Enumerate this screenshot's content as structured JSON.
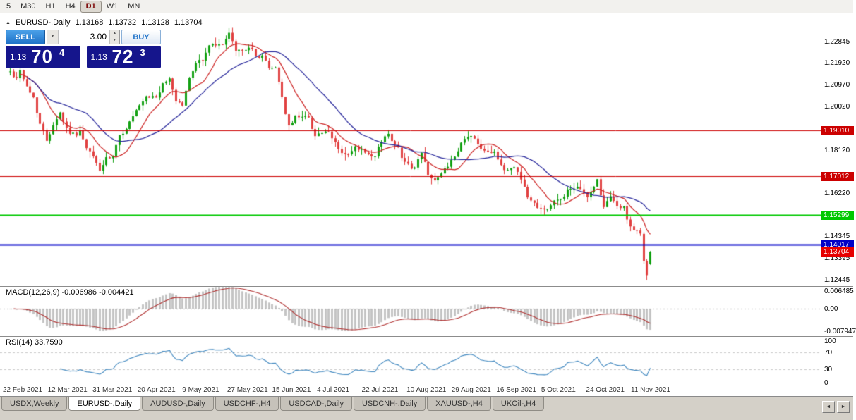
{
  "window": {
    "toolbar": {
      "timeframes": [
        {
          "label": "5",
          "active": false
        },
        {
          "label": "M30",
          "active": false
        },
        {
          "label": "H1",
          "active": false
        },
        {
          "label": "H4",
          "active": false
        },
        {
          "label": "D1",
          "active": true
        },
        {
          "label": "W1",
          "active": false
        },
        {
          "label": "MN",
          "active": false
        }
      ]
    },
    "tabs": [
      {
        "label": "USDX,Weekly",
        "active": false
      },
      {
        "label": "EURUSD-,Daily",
        "active": true
      },
      {
        "label": "AUDUSD-,Daily",
        "active": false
      },
      {
        "label": "USDCHF-,H4",
        "active": false
      },
      {
        "label": "USDCAD-,Daily",
        "active": false
      },
      {
        "label": "USDCNH-,Daily",
        "active": false
      },
      {
        "label": "XAUUSD-,H4",
        "active": false
      },
      {
        "label": "UKOil-,H4",
        "active": false
      }
    ]
  },
  "icons": {
    "collapse": "▲",
    "volume_dropdown": "▼",
    "spin_up": "▲",
    "spin_down": "▼",
    "tab_left": "◄",
    "tab_right": "►"
  },
  "header": {
    "symbol": "EURUSD-,Daily",
    "open": "1.13168",
    "high": "1.13732",
    "low": "1.13128",
    "close": "1.13704"
  },
  "trade_panel": {
    "sell_label": "SELL",
    "buy_label": "BUY",
    "volume": "3.00",
    "bid": {
      "prefix": "1.13",
      "big": "70",
      "sup": "4"
    },
    "ask": {
      "prefix": "1.13",
      "big": "72",
      "sup": "3"
    }
  },
  "price_axis": {
    "plain_labels": [
      {
        "text": "1.22845",
        "price": 1.22845
      },
      {
        "text": "1.21920",
        "price": 1.2192
      },
      {
        "text": "1.20970",
        "price": 1.2097
      },
      {
        "text": "1.20020",
        "price": 1.2002
      },
      {
        "text": "1.18120",
        "price": 1.1812
      },
      {
        "text": "1.16220",
        "price": 1.1622
      },
      {
        "text": "1.14345",
        "price": 1.14345
      },
      {
        "text": "1.13395",
        "price": 1.13395
      },
      {
        "text": "1.12445",
        "price": 1.12445
      }
    ],
    "level_labels": [
      {
        "text": "1.19010",
        "price": 1.1901,
        "color": "#cc0000"
      },
      {
        "text": "1.17012",
        "price": 1.17012,
        "color": "#cc0000"
      },
      {
        "text": "1.15299",
        "price": 1.15299,
        "color": "#00c800"
      },
      {
        "text": "1.14017",
        "price": 1.14017,
        "color": "#0000c8"
      }
    ],
    "current_label": {
      "text": "1.13704",
      "price": 1.13704,
      "color": "#e60000"
    }
  },
  "macd_panel": {
    "header": "MACD(12,26,9) -0.006986 -0.004421",
    "axis_labels": [
      {
        "text": "0.006485",
        "value": 0.006485
      },
      {
        "text": "0.00",
        "value": 0
      },
      {
        "text": "-0.007947",
        "value": -0.007947
      }
    ]
  },
  "rsi_panel": {
    "header": "RSI(14) 33.7590",
    "axis_labels": [
      {
        "text": "100",
        "value": 100
      },
      {
        "text": "70",
        "value": 70
      },
      {
        "text": "30",
        "value": 30
      },
      {
        "text": "0",
        "value": 0
      }
    ]
  },
  "date_axis": [
    "22 Feb 2021",
    "12 Mar 2021",
    "31 Mar 2021",
    "20 Apr 2021",
    "9 May 2021",
    "27 May 2021",
    "15 Jun 2021",
    "4 Jul 2021",
    "22 Jul 2021",
    "10 Aug 2021",
    "29 Aug 2021",
    "16 Sep 2021",
    "5 Oct 2021",
    "24 Oct 2021",
    "11 Nov 2021"
  ],
  "chart_data": {
    "type": "candlestick",
    "symbol": "EURUSD-",
    "timeframe": "Daily",
    "bar_count": 194,
    "last_bar": {
      "open": 1.13168,
      "high": 1.13732,
      "low": 1.13128,
      "close": 1.13704
    },
    "price_axis_range": [
      1.122,
      1.239
    ],
    "horizontal_lines": [
      {
        "price": 1.1901,
        "color": "#cc0000",
        "width": 1
      },
      {
        "price": 1.17012,
        "color": "#cc0000",
        "width": 1
      },
      {
        "price": 1.15299,
        "color": "#00c800",
        "width": 2
      },
      {
        "price": 1.14017,
        "color": "#0000c8",
        "width": 2
      }
    ],
    "indicators": {
      "ma_fast_period": 10,
      "ma_slow_period": 24,
      "macd": {
        "fast": 12,
        "slow": 26,
        "signal": 9,
        "main": -0.006986,
        "signal_value": -0.004421
      },
      "rsi": {
        "period": 14,
        "value": 33.759,
        "levels": [
          70,
          30
        ]
      }
    },
    "colors": {
      "up": "#13a113",
      "down": "#e14040",
      "ma_fast": "#cc2222",
      "ma_slow": "#222299",
      "macd_hist": "#c4c4c4",
      "macd_signal": "#b03030",
      "rsi_line": "#3f87bf"
    },
    "close_anchors": [
      [
        0,
        1.2155
      ],
      [
        2,
        1.2125
      ],
      [
        3,
        1.2168
      ],
      [
        5,
        1.2088
      ],
      [
        7,
        1.2042
      ],
      [
        9,
        1.1928
      ],
      [
        11,
        1.1858
      ],
      [
        13,
        1.1928
      ],
      [
        15,
        1.1978
      ],
      [
        17,
        1.1908
      ],
      [
        19,
        1.188
      ],
      [
        21,
        1.1895
      ],
      [
        23,
        1.1818
      ],
      [
        25,
        1.1785
      ],
      [
        27,
        1.1728
      ],
      [
        29,
        1.1772
      ],
      [
        31,
        1.1782
      ],
      [
        33,
        1.1872
      ],
      [
        35,
        1.1912
      ],
      [
        38,
        1.1982
      ],
      [
        41,
        1.204
      ],
      [
        44,
        1.2048
      ],
      [
        46,
        1.2095
      ],
      [
        48,
        1.2128
      ],
      [
        50,
        1.203
      ],
      [
        52,
        1.2012
      ],
      [
        54,
        1.2125
      ],
      [
        56,
        1.22
      ],
      [
        58,
        1.2205
      ],
      [
        60,
        1.2272
      ],
      [
        63,
        1.2268
      ],
      [
        66,
        1.2315
      ],
      [
        68,
        1.225
      ],
      [
        70,
        1.2245
      ],
      [
        72,
        1.227
      ],
      [
        74,
        1.222
      ],
      [
        76,
        1.2228
      ],
      [
        78,
        1.2168
      ],
      [
        80,
        1.2178
      ],
      [
        82,
        1.2045
      ],
      [
        84,
        1.1912
      ],
      [
        86,
        1.1958
      ],
      [
        88,
        1.1968
      ],
      [
        90,
        1.195
      ],
      [
        92,
        1.188
      ],
      [
        94,
        1.189
      ],
      [
        96,
        1.1885
      ],
      [
        98,
        1.1845
      ],
      [
        100,
        1.18
      ],
      [
        102,
        1.179
      ],
      [
        104,
        1.1822
      ],
      [
        106,
        1.1812
      ],
      [
        108,
        1.1785
      ],
      [
        110,
        1.1782
      ],
      [
        112,
        1.1858
      ],
      [
        114,
        1.1882
      ],
      [
        116,
        1.1845
      ],
      [
        118,
        1.179
      ],
      [
        120,
        1.1745
      ],
      [
        122,
        1.1738
      ],
      [
        124,
        1.18
      ],
      [
        126,
        1.1715
      ],
      [
        128,
        1.168
      ],
      [
        130,
        1.1705
      ],
      [
        132,
        1.175
      ],
      [
        134,
        1.1775
      ],
      [
        136,
        1.184
      ],
      [
        138,
        1.1878
      ],
      [
        140,
        1.1862
      ],
      [
        142,
        1.1825
      ],
      [
        144,
        1.1812
      ],
      [
        146,
        1.1808
      ],
      [
        148,
        1.1738
      ],
      [
        150,
        1.1728
      ],
      [
        152,
        1.1742
      ],
      [
        154,
        1.1695
      ],
      [
        156,
        1.1605
      ],
      [
        158,
        1.1582
      ],
      [
        160,
        1.1562
      ],
      [
        162,
        1.1558
      ],
      [
        164,
        1.1588
      ],
      [
        166,
        1.1602
      ],
      [
        168,
        1.1638
      ],
      [
        170,
        1.1635
      ],
      [
        172,
        1.1652
      ],
      [
        174,
        1.1602
      ],
      [
        176,
        1.166
      ],
      [
        177,
        1.1682
      ],
      [
        179,
        1.1562
      ],
      [
        181,
        1.1608
      ],
      [
        183,
        1.1572
      ],
      [
        185,
        1.1558
      ],
      [
        187,
        1.1482
      ],
      [
        189,
        1.1452
      ],
      [
        190,
        1.1445
      ],
      [
        193,
        1.137
      ]
    ],
    "tail_bars": {
      "191": [
        1.1448,
        1.1456,
        1.1318,
        1.133
      ],
      "192": [
        1.133,
        1.1338,
        1.1246,
        1.1268
      ],
      "193": [
        1.13168,
        1.13732,
        1.13128,
        1.13704
      ]
    }
  }
}
